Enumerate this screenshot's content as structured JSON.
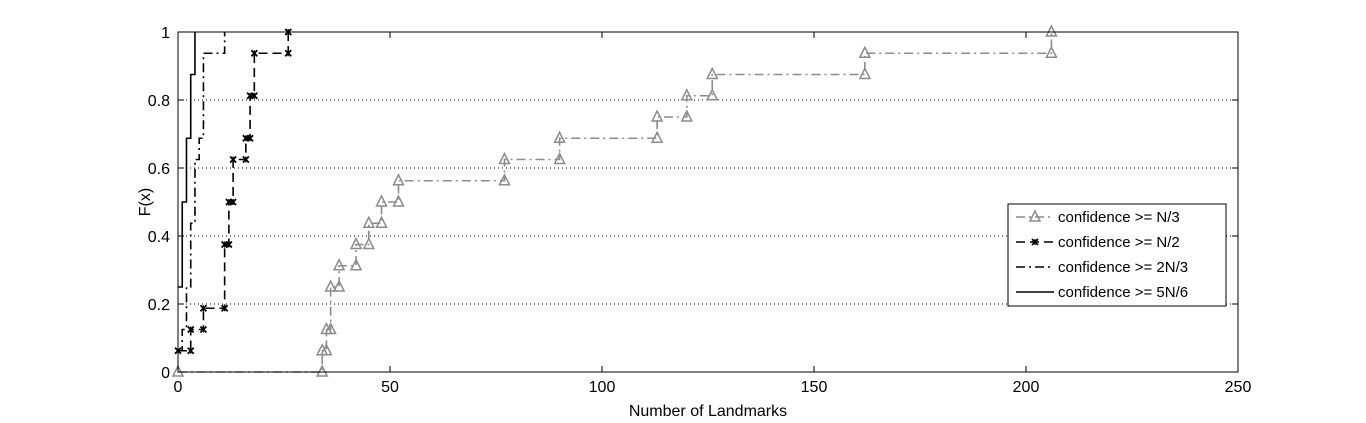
{
  "chart_data": {
    "type": "line",
    "title": "",
    "xlabel": "Number of Landmarks",
    "ylabel": "F(x)",
    "xlim": [
      0,
      250
    ],
    "ylim": [
      0,
      1
    ],
    "x_ticks": [
      "0",
      "50",
      "100",
      "150",
      "200",
      "250"
    ],
    "y_ticks": [
      "0",
      "0.2",
      "0.4",
      "0.6",
      "0.8",
      "1"
    ],
    "grid": "horizontal dotted",
    "legend_position": "right",
    "series": [
      {
        "name": "confidence >= N/3",
        "color": "#8c8c8c",
        "line_style": "dash-dot",
        "marker": "triangle",
        "x": [
          0,
          34,
          35,
          36,
          38,
          42,
          45,
          48,
          52,
          77,
          90,
          113,
          120,
          126,
          162,
          206
        ],
        "y": [
          0,
          0.0625,
          0.125,
          0.25,
          0.3125,
          0.375,
          0.4375,
          0.5,
          0.5625,
          0.625,
          0.6875,
          0.75,
          0.8125,
          0.875,
          0.9375,
          1.0
        ]
      },
      {
        "name": "confidence >= N/2",
        "color": "#000000",
        "line_style": "dashed",
        "marker": "x",
        "x": [
          0,
          3,
          6,
          11,
          12,
          13,
          16,
          17,
          18,
          26
        ],
        "y": [
          0.0625,
          0.125,
          0.1875,
          0.375,
          0.5,
          0.625,
          0.6875,
          0.8125,
          0.9375,
          1.0
        ]
      },
      {
        "name": "confidence >= 2N/3",
        "color": "#000000",
        "line_style": "dash-dot",
        "marker": "none",
        "x": [
          0,
          1,
          2,
          3,
          4,
          5,
          6,
          11
        ],
        "y": [
          0.0625,
          0.125,
          0.25,
          0.4375,
          0.625,
          0.6875,
          0.9375,
          1.0
        ]
      },
      {
        "name": "confidence >= 5N/6",
        "color": "#000000",
        "line_style": "solid",
        "marker": "none",
        "x": [
          0,
          1,
          2,
          3,
          4
        ],
        "y": [
          0.25,
          0.5,
          0.6875,
          0.875,
          1.0
        ]
      }
    ]
  }
}
